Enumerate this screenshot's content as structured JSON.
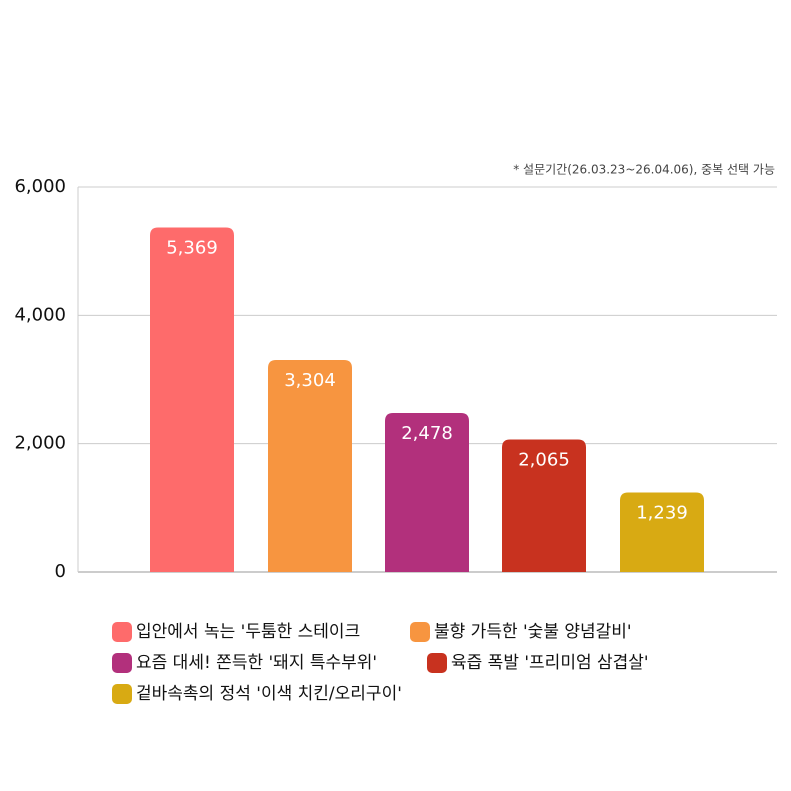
{
  "chart_data": {
    "type": "bar",
    "note": "* 설문기간(26.03.23~26.04.06), 중복 선택 가능",
    "series": [
      {
        "name": "입안에서 녹는 '두툼한 스테이크",
        "color": "#fe6b6b",
        "values": [
          5369
        ],
        "value_labels": [
          "5,369"
        ]
      },
      {
        "name": "불향 가득한 '숯불 양념갈비'",
        "color": "#f79540",
        "values": [
          3304
        ],
        "value_labels": [
          "3,304"
        ]
      },
      {
        "name": "요즘 대세! 쫀득한 '돼지 특수부위'",
        "color": "#b2307c",
        "values": [
          2478
        ],
        "value_labels": [
          "2,478"
        ]
      },
      {
        "name": "육즙 폭발 '프리미엄 삼겹살'",
        "color": "#c8321f",
        "values": [
          2065
        ],
        "value_labels": [
          "2,065"
        ]
      },
      {
        "name": "겉바속촉의 정석 '이색 치킨/오리구이'",
        "color": "#d8aa13",
        "values": [
          1239
        ],
        "value_labels": [
          "1,239"
        ]
      }
    ],
    "ylim": [
      0,
      6000
    ],
    "yticks": [
      0,
      {
        "value": 2000,
        "label": "2,000"
      },
      {
        "value": 4000,
        "label": "4,000"
      },
      {
        "value": 6000,
        "label": "6,000"
      }
    ],
    "grid": true
  }
}
